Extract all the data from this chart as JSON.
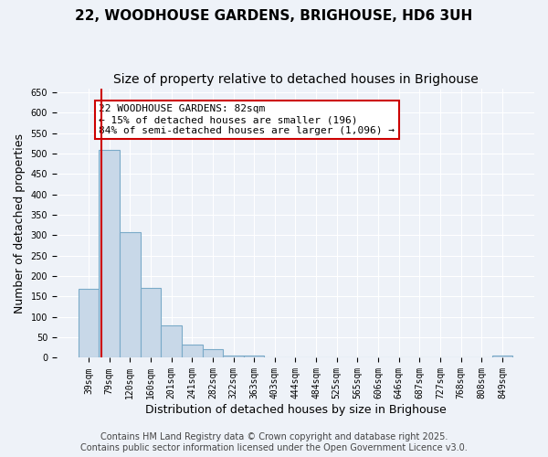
{
  "title_line1": "22, WOODHOUSE GARDENS, BRIGHOUSE, HD6 3UH",
  "title_line2": "Size of property relative to detached houses in Brighouse",
  "xlabel": "Distribution of detached houses by size in Brighouse",
  "ylabel": "Number of detached properties",
  "categories": [
    "39sqm",
    "79sqm",
    "120sqm",
    "160sqm",
    "201sqm",
    "241sqm",
    "282sqm",
    "322sqm",
    "363sqm",
    "403sqm",
    "444sqm",
    "484sqm",
    "525sqm",
    "565sqm",
    "606sqm",
    "646sqm",
    "687sqm",
    "727sqm",
    "768sqm",
    "808sqm",
    "849sqm"
  ],
  "bar_heights": [
    170,
    510,
    307,
    172,
    80,
    33,
    22,
    5,
    5,
    0,
    0,
    0,
    0,
    0,
    0,
    0,
    0,
    0,
    0,
    0,
    5
  ],
  "bar_color": "#c8d8e8",
  "bar_edge_color": "#7aaac8",
  "bar_linewidth": 0.8,
  "ylim": [
    0,
    660
  ],
  "yticks": [
    0,
    50,
    100,
    150,
    200,
    250,
    300,
    350,
    400,
    450,
    500,
    550,
    600,
    650
  ],
  "vline_x": 1.1,
  "vline_color": "#cc0000",
  "annotation_text": "22 WOODHOUSE GARDENS: 82sqm\n← 15% of detached houses are smaller (196)\n84% of semi-detached houses are larger (1,096) →",
  "annotation_box_color": "#cc0000",
  "background_color": "#eef2f8",
  "grid_color": "#ffffff",
  "footer_line1": "Contains HM Land Registry data © Crown copyright and database right 2025.",
  "footer_line2": "Contains public sector information licensed under the Open Government Licence v3.0.",
  "title_fontsize": 11,
  "subtitle_fontsize": 10,
  "xlabel_fontsize": 9,
  "ylabel_fontsize": 9,
  "tick_fontsize": 7,
  "annotation_fontsize": 8,
  "footer_fontsize": 7
}
